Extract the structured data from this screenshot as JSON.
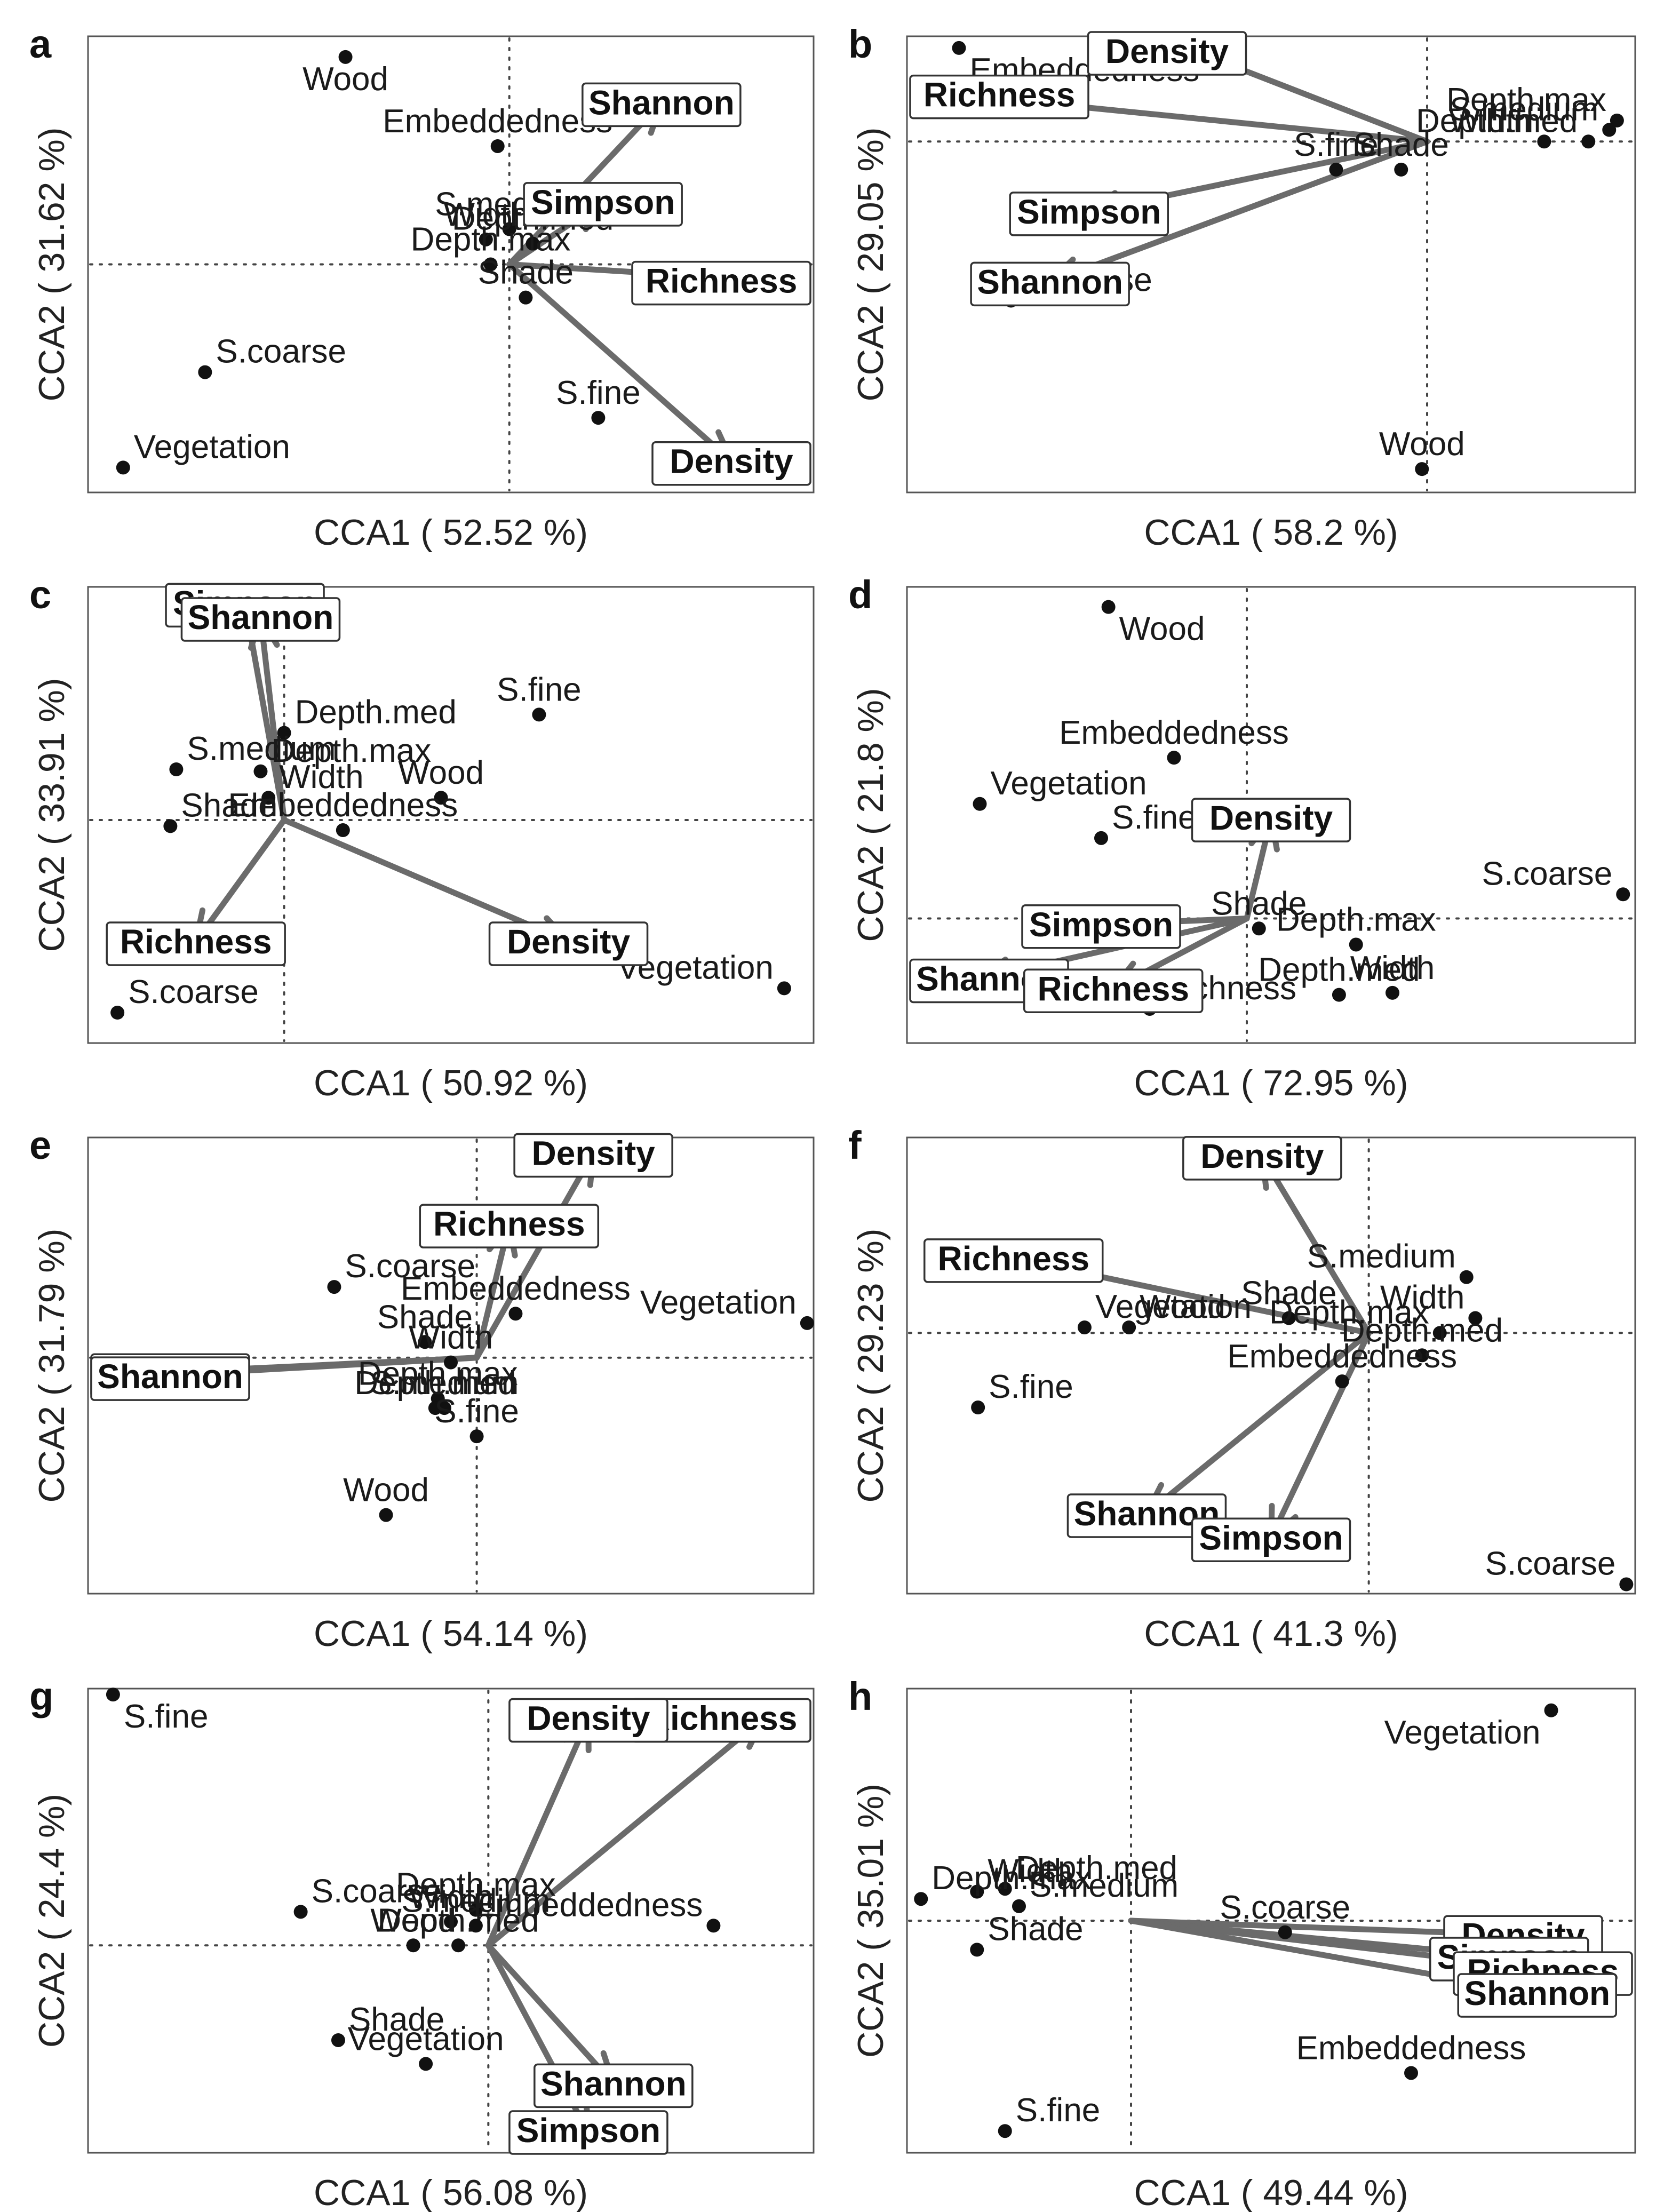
{
  "chart_data": [
    {
      "type": "scatter",
      "panel": "a",
      "xlabel": "CCA1 ( 52.52 %)",
      "ylabel": "CCA2 ( 31.62 %)",
      "xlim": [
        -1.8,
        1.3
      ],
      "ylim": [
        -1.1,
        1.1
      ],
      "sites": [
        {
          "name": "Wood",
          "x": -0.7,
          "y": 1.0
        },
        {
          "name": "Embeddedness",
          "x": -0.05,
          "y": 0.57
        },
        {
          "name": "S.medium",
          "x": 0.0,
          "y": 0.17
        },
        {
          "name": "Width",
          "x": -0.1,
          "y": 0.12
        },
        {
          "name": "Depth.med",
          "x": 0.1,
          "y": 0.1
        },
        {
          "name": "Depth.max",
          "x": -0.08,
          "y": 0.0
        },
        {
          "name": "Shade",
          "x": 0.07,
          "y": -0.16
        },
        {
          "name": "S.coarse",
          "x": -1.3,
          "y": -0.52
        },
        {
          "name": "S.fine",
          "x": 0.38,
          "y": -0.74
        },
        {
          "name": "Vegetation",
          "x": -1.65,
          "y": -0.98
        }
      ],
      "responses": [
        {
          "name": "Shannon",
          "x": 0.65,
          "y": 0.78
        },
        {
          "name": "Simpson",
          "x": 0.4,
          "y": 0.3
        },
        {
          "name": "Richness",
          "x": 1.15,
          "y": -0.08
        },
        {
          "name": "Density",
          "x": 0.95,
          "y": -0.95
        }
      ]
    },
    {
      "type": "scatter",
      "panel": "b",
      "xlabel": "CCA1 ( 58.2 %)",
      "ylabel": "CCA2 ( 29.05 %)",
      "xlim": [
        -2.0,
        0.8
      ],
      "ylim": [
        -1.5,
        0.45
      ],
      "sites": [
        {
          "name": "Embeddedness",
          "x": -1.8,
          "y": 0.4
        },
        {
          "name": "Depth.max",
          "x": 0.73,
          "y": 0.09
        },
        {
          "name": "S.medium",
          "x": 0.7,
          "y": 0.05
        },
        {
          "name": "Width",
          "x": 0.45,
          "y": 0.0
        },
        {
          "name": "Depth.med",
          "x": 0.62,
          "y": 0.0
        },
        {
          "name": "S.fine",
          "x": -0.35,
          "y": -0.12
        },
        {
          "name": "Shade",
          "x": -0.1,
          "y": -0.12
        },
        {
          "name": "S.coarse",
          "x": -1.6,
          "y": -0.68
        },
        {
          "name": "Wood",
          "x": -0.02,
          "y": -1.4
        }
      ],
      "responses": [
        {
          "name": "Density",
          "x": -1.0,
          "y": 0.5
        },
        {
          "name": "Richness",
          "x": -1.8,
          "y": 0.2
        },
        {
          "name": "Simpson",
          "x": -1.3,
          "y": -0.3
        },
        {
          "name": "Shannon",
          "x": -1.45,
          "y": -0.6
        }
      ]
    },
    {
      "type": "scatter",
      "panel": "c",
      "xlabel": "CCA1 ( 50.92 %)",
      "ylabel": "CCA2 ( 33.91 %)",
      "xlim": [
        -1.0,
        2.7
      ],
      "ylim": [
        -1.1,
        1.15
      ],
      "sites": [
        {
          "name": "S.fine",
          "x": 1.3,
          "y": 0.52
        },
        {
          "name": "Depth.med",
          "x": 0.0,
          "y": 0.43
        },
        {
          "name": "S.medium",
          "x": -0.55,
          "y": 0.25
        },
        {
          "name": "Depth.max",
          "x": -0.12,
          "y": 0.24
        },
        {
          "name": "Wood",
          "x": 0.8,
          "y": 0.11
        },
        {
          "name": "Width",
          "x": -0.08,
          "y": 0.11
        },
        {
          "name": "Shade",
          "x": -0.58,
          "y": -0.03
        },
        {
          "name": "Embeddedness",
          "x": 0.3,
          "y": -0.05
        },
        {
          "name": "Vegetation",
          "x": 2.55,
          "y": -0.83
        },
        {
          "name": "S.coarse",
          "x": -0.85,
          "y": -0.95
        }
      ],
      "responses": [
        {
          "name": "Simpson",
          "x": -0.2,
          "y": 1.07
        },
        {
          "name": "Shannon",
          "x": -0.12,
          "y": 1.0
        },
        {
          "name": "Richness",
          "x": -0.45,
          "y": -0.6
        },
        {
          "name": "Density",
          "x": 1.45,
          "y": -0.6
        }
      ]
    },
    {
      "type": "scatter",
      "panel": "d",
      "xlabel": "CCA1 ( 72.95 %)",
      "ylabel": "CCA2 ( 21.8 %)",
      "xlim": [
        -1.4,
        1.6
      ],
      "ylim": [
        -0.62,
        1.65
      ],
      "sites": [
        {
          "name": "Wood",
          "x": -0.57,
          "y": 1.55
        },
        {
          "name": "Embeddedness",
          "x": -0.3,
          "y": 0.8
        },
        {
          "name": "Vegetation",
          "x": -1.1,
          "y": 0.57
        },
        {
          "name": "S.fine",
          "x": -0.6,
          "y": 0.4
        },
        {
          "name": "S.coarse",
          "x": 1.55,
          "y": 0.12
        },
        {
          "name": "Shade",
          "x": 0.05,
          "y": -0.05
        },
        {
          "name": "Depth.max",
          "x": 0.45,
          "y": -0.13
        },
        {
          "name": "Width",
          "x": 0.6,
          "y": -0.37
        },
        {
          "name": "Depth.med",
          "x": 0.38,
          "y": -0.38
        },
        {
          "name": "Richness",
          "x": -0.4,
          "y": -0.45
        }
      ],
      "responses": [
        {
          "name": "Density",
          "x": 0.1,
          "y": 0.5
        },
        {
          "name": "Simpson",
          "x": -0.6,
          "y": -0.03
        },
        {
          "name": "Shannon",
          "x": -1.1,
          "y": -0.3
        },
        {
          "name": "Richness",
          "x": -0.55,
          "y": -0.35
        }
      ]
    },
    {
      "type": "scatter",
      "panel": "e",
      "xlabel": "CCA1 ( 54.14 %)",
      "ylabel": "CCA2 ( 31.79 %)",
      "xlim": [
        -3.0,
        2.6
      ],
      "ylim": [
        -1.5,
        1.4
      ],
      "sites": [
        {
          "name": "S.coarse",
          "x": -1.1,
          "y": 0.45
        },
        {
          "name": "Embeddedness",
          "x": 0.3,
          "y": 0.28
        },
        {
          "name": "Vegetation",
          "x": 2.55,
          "y": 0.22
        },
        {
          "name": "Shade",
          "x": -0.4,
          "y": 0.1
        },
        {
          "name": "Width",
          "x": -0.2,
          "y": -0.03
        },
        {
          "name": "Depth.max",
          "x": -0.3,
          "y": -0.26
        },
        {
          "name": "S.medium",
          "x": -0.25,
          "y": -0.32
        },
        {
          "name": "Depth.med",
          "x": -0.32,
          "y": -0.32
        },
        {
          "name": "S.fine",
          "x": 0.0,
          "y": -0.5
        },
        {
          "name": "Wood",
          "x": -0.7,
          "y": -1.0
        }
      ],
      "responses": [
        {
          "name": "Density",
          "x": 0.9,
          "y": 1.3
        },
        {
          "name": "Richness",
          "x": 0.25,
          "y": 0.85
        },
        {
          "name": "Simpson",
          "x": -2.55,
          "y": -0.1
        },
        {
          "name": "Shannon",
          "x": -2.6,
          "y": -0.12
        }
      ]
    },
    {
      "type": "scatter",
      "panel": "f",
      "xlabel": "CCA1 ( 41.3 %)",
      "ylabel": "CCA2 ( 29.23 %)",
      "xlim": [
        -2.6,
        1.5
      ],
      "ylim": [
        -1.4,
        1.05
      ],
      "sites": [
        {
          "name": "S.medium",
          "x": 0.55,
          "y": 0.3
        },
        {
          "name": "Width",
          "x": 0.6,
          "y": 0.08
        },
        {
          "name": "Shade",
          "x": -0.45,
          "y": 0.08
        },
        {
          "name": "Depth.max",
          "x": 0.4,
          "y": 0.0
        },
        {
          "name": "Wood",
          "x": -1.35,
          "y": 0.03
        },
        {
          "name": "Vegetation",
          "x": -1.6,
          "y": 0.03
        },
        {
          "name": "Depth.med",
          "x": 0.3,
          "y": -0.12
        },
        {
          "name": "Embeddedness",
          "x": -0.15,
          "y": -0.26
        },
        {
          "name": "S.fine",
          "x": -2.2,
          "y": -0.4
        },
        {
          "name": "S.coarse",
          "x": 1.45,
          "y": -1.35
        }
      ],
      "responses": [
        {
          "name": "Density",
          "x": -0.6,
          "y": 0.95
        },
        {
          "name": "Richness",
          "x": -2.0,
          "y": 0.4
        },
        {
          "name": "Shannon",
          "x": -1.25,
          "y": -0.97
        },
        {
          "name": "Simpson",
          "x": -0.55,
          "y": -1.1
        }
      ]
    },
    {
      "type": "scatter",
      "panel": "g",
      "xlabel": "CCA1 ( 56.08 %)",
      "ylabel": "CCA2 ( 24.4 %)",
      "xlim": [
        -1.6,
        1.3
      ],
      "ylim": [
        -1.05,
        1.3
      ],
      "sites": [
        {
          "name": "S.fine",
          "x": -1.5,
          "y": 1.27
        },
        {
          "name": "S.coarse",
          "x": -0.75,
          "y": 0.17
        },
        {
          "name": "Depth.max",
          "x": -0.05,
          "y": 0.18
        },
        {
          "name": "Embeddedness",
          "x": 0.9,
          "y": 0.1
        },
        {
          "name": "Width",
          "x": -0.15,
          "y": 0.12
        },
        {
          "name": "Wood",
          "x": -0.3,
          "y": 0.0
        },
        {
          "name": "Depth.med",
          "x": -0.12,
          "y": 0.0
        },
        {
          "name": "S.medium",
          "x": -0.05,
          "y": 0.1
        },
        {
          "name": "Shade",
          "x": -0.6,
          "y": -0.48
        },
        {
          "name": "Vegetation",
          "x": -0.25,
          "y": -0.6
        }
      ],
      "responses": [
        {
          "name": "Richness",
          "x": 1.1,
          "y": 1.15
        },
        {
          "name": "Density",
          "x": 0.4,
          "y": 1.15
        },
        {
          "name": "Shannon",
          "x": 0.5,
          "y": -0.7
        },
        {
          "name": "Simpson",
          "x": 0.4,
          "y": -0.95
        }
      ]
    },
    {
      "type": "scatter",
      "panel": "h",
      "xlabel": "CCA1 ( 49.44 %)",
      "ylabel": "CCA2 ( 35.01 %)",
      "xlim": [
        -0.8,
        1.8
      ],
      "ylim": [
        -1.6,
        1.6
      ],
      "sites": [
        {
          "name": "Vegetation",
          "x": 1.5,
          "y": 1.45
        },
        {
          "name": "Width",
          "x": -0.55,
          "y": 0.2
        },
        {
          "name": "Depth.med",
          "x": -0.45,
          "y": 0.22
        },
        {
          "name": "Depth.max",
          "x": -0.75,
          "y": 0.15
        },
        {
          "name": "S.medium",
          "x": -0.4,
          "y": 0.1
        },
        {
          "name": "S.coarse",
          "x": 0.55,
          "y": -0.08
        },
        {
          "name": "Shade",
          "x": -0.55,
          "y": -0.2
        },
        {
          "name": "Embeddedness",
          "x": 1.0,
          "y": -1.05
        },
        {
          "name": "S.fine",
          "x": -0.45,
          "y": -1.45
        }
      ],
      "responses": [
        {
          "name": "Density",
          "x": 1.4,
          "y": -0.1
        },
        {
          "name": "Simpson",
          "x": 1.35,
          "y": -0.25
        },
        {
          "name": "Richness",
          "x": 1.55,
          "y": -0.35
        },
        {
          "name": "Shannon",
          "x": 1.45,
          "y": -0.5
        }
      ]
    }
  ]
}
